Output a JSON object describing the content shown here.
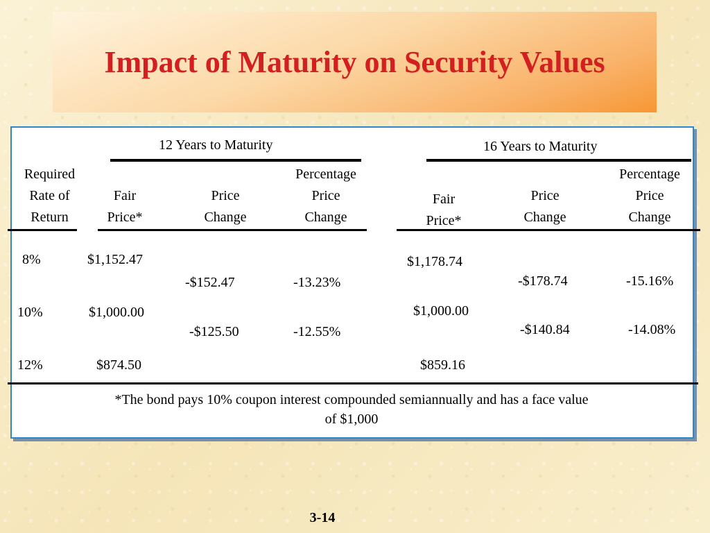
{
  "slide": {
    "title": "Impact of Maturity on Security Values",
    "page_number": "3-14",
    "colors": {
      "title": "#d21f1f",
      "frame_border": "#2f86c8"
    }
  },
  "table": {
    "group_12": "12 Years to Maturity",
    "group_16": "16 Years to Maturity",
    "headers": {
      "rate": [
        "Required",
        "Rate of",
        "Return"
      ],
      "fair12": [
        "Fair",
        "Price*"
      ],
      "change12": [
        "Price",
        "Change"
      ],
      "pct12": [
        "Percentage",
        "Price",
        "Change"
      ],
      "fair16": [
        "Fair",
        "Price*"
      ],
      "change16": [
        "Price",
        "Change"
      ],
      "pct16": [
        "Percentage",
        "Price",
        "Change"
      ]
    },
    "rows": [
      {
        "rate": "8%",
        "fair12": "$1,152.47",
        "fair16": "$1,178.74"
      },
      {
        "rate": "10%",
        "fair12": "$1,000.00",
        "fair16": "$1,000.00"
      },
      {
        "rate": "12%",
        "fair12": "$874.50",
        "fair16": "$859.16"
      }
    ],
    "changes": [
      {
        "change12": "-$152.47",
        "pct12": "-13.23%",
        "change16": "-$178.74",
        "pct16": "-15.16%"
      },
      {
        "change12": "-$125.50",
        "pct12": "-12.55%",
        "change16": "-$140.84",
        "pct16": "-14.08%"
      }
    ],
    "footnote": [
      "*The bond pays 10% coupon interest compounded semiannually and has a face value",
      "of $1,000"
    ]
  }
}
